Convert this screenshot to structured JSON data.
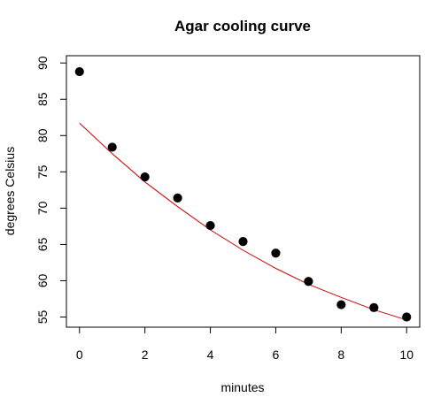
{
  "chart_data": {
    "type": "scatter",
    "title": "Agar cooling curve",
    "xlabel": "minutes",
    "ylabel": "degrees Celsius",
    "xlim": [
      -0.4,
      10.4
    ],
    "ylim": [
      53.6,
      91.0
    ],
    "x_ticks": [
      0,
      2,
      4,
      6,
      8,
      10
    ],
    "y_ticks": [
      55,
      60,
      65,
      70,
      75,
      80,
      85,
      90
    ],
    "grid": false,
    "series": [
      {
        "kind": "points",
        "color": "#000000",
        "points": [
          {
            "x": 0,
            "y": 88.8
          },
          {
            "x": 1,
            "y": 78.4
          },
          {
            "x": 2,
            "y": 74.3
          },
          {
            "x": 3,
            "y": 71.4
          },
          {
            "x": 4,
            "y": 67.6
          },
          {
            "x": 5,
            "y": 65.4
          },
          {
            "x": 6,
            "y": 63.8
          },
          {
            "x": 7,
            "y": 59.9
          },
          {
            "x": 8,
            "y": 56.7
          },
          {
            "x": 9,
            "y": 56.3
          },
          {
            "x": 10,
            "y": 55.0
          }
        ]
      },
      {
        "kind": "fitted-curve",
        "color": "#cc0000",
        "x": [
          0,
          1,
          2,
          3,
          4,
          5,
          6,
          7,
          8,
          9,
          10
        ],
        "y": [
          81.7,
          77.5,
          73.6,
          70.2,
          67.0,
          64.2,
          61.7,
          59.5,
          57.7,
          56.0,
          54.6
        ]
      }
    ]
  }
}
